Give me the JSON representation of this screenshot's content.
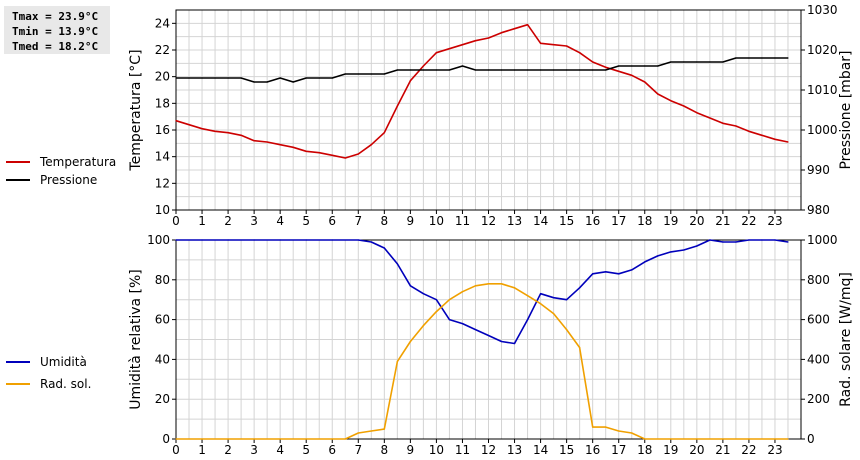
{
  "stats": {
    "tmax": "Tmax = 23.9°C",
    "tmin": "Tmin = 13.9°C",
    "tmed": "Tmed = 18.2°C"
  },
  "chart_data": [
    {
      "type": "line",
      "ylabel": "Temperatura [°C]",
      "y2label": "Pressione [mbar]",
      "ylim": [
        10,
        25
      ],
      "y2lim": [
        980,
        1030
      ],
      "yticks": [
        10,
        12,
        14,
        16,
        18,
        20,
        22,
        24
      ],
      "y2ticks": [
        980,
        990,
        1000,
        1010,
        1020,
        1030
      ],
      "xticks": [
        "0",
        "1",
        "2",
        "3",
        "4",
        "5",
        "6",
        "7",
        "8",
        "9",
        "10",
        "11",
        "12",
        "13",
        "14",
        "15",
        "16",
        "17",
        "18",
        "19",
        "20",
        "21",
        "22",
        "23"
      ],
      "xlim": [
        0,
        24
      ],
      "grid": true,
      "legend_position": "left",
      "series": [
        {
          "name": "Temperatura",
          "axis": "left",
          "color": "#cc0000",
          "x": [
            0,
            0.5,
            1,
            1.5,
            2,
            2.5,
            3,
            3.5,
            4,
            4.5,
            5,
            5.5,
            6,
            6.5,
            7,
            7.5,
            8,
            8.5,
            9,
            9.5,
            10,
            10.5,
            11,
            11.5,
            12,
            12.5,
            13,
            13.5,
            14,
            14.5,
            15,
            15.5,
            16,
            16.5,
            17,
            17.5,
            18,
            18.5,
            19,
            19.5,
            20,
            20.5,
            21,
            21.5,
            22,
            22.5,
            23,
            23.5
          ],
          "values": [
            16.7,
            16.4,
            16.1,
            15.9,
            15.8,
            15.6,
            15.2,
            15.1,
            14.9,
            14.7,
            14.4,
            14.3,
            14.1,
            13.9,
            14.2,
            14.9,
            15.8,
            17.8,
            19.7,
            20.8,
            21.8,
            22.1,
            22.4,
            22.7,
            22.9,
            23.3,
            23.6,
            23.9,
            22.5,
            22.4,
            22.3,
            21.8,
            21.1,
            20.7,
            20.4,
            20.1,
            19.6,
            18.7,
            18.2,
            17.8,
            17.3,
            16.9,
            16.5,
            16.3,
            15.9,
            15.6,
            15.3,
            15.1
          ]
        },
        {
          "name": "Pressione",
          "axis": "right",
          "color": "#000000",
          "x": [
            0,
            0.5,
            1,
            1.5,
            2,
            2.5,
            3,
            3.5,
            4,
            4.5,
            5,
            5.5,
            6,
            6.5,
            7,
            7.5,
            8,
            8.5,
            9,
            9.5,
            10,
            10.5,
            11,
            11.5,
            12,
            12.5,
            13,
            13.5,
            14,
            14.5,
            15,
            15.5,
            16,
            16.5,
            17,
            17.5,
            18,
            18.5,
            19,
            19.5,
            20,
            20.5,
            21,
            21.5,
            22,
            22.5,
            23,
            23.5
          ],
          "values": [
            1013,
            1013,
            1013,
            1013,
            1013,
            1013,
            1012,
            1012,
            1013,
            1012,
            1013,
            1013,
            1013,
            1014,
            1014,
            1014,
            1014,
            1015,
            1015,
            1015,
            1015,
            1015,
            1016,
            1015,
            1015,
            1015,
            1015,
            1015,
            1015,
            1015,
            1015,
            1015,
            1015,
            1015,
            1016,
            1016,
            1016,
            1016,
            1017,
            1017,
            1017,
            1017,
            1017,
            1018,
            1018,
            1018,
            1018,
            1018
          ]
        }
      ]
    },
    {
      "type": "line",
      "ylabel": "Umidità relativa [%]",
      "y2label": "Rad. solare [W/mq]",
      "ylim": [
        0,
        100
      ],
      "y2lim": [
        0,
        1000
      ],
      "yticks": [
        0,
        20,
        40,
        60,
        80,
        100
      ],
      "y2ticks": [
        0,
        200,
        400,
        600,
        800,
        1000
      ],
      "xticks": [
        "0",
        "1",
        "2",
        "3",
        "4",
        "5",
        "6",
        "7",
        "8",
        "9",
        "10",
        "11",
        "12",
        "13",
        "14",
        "15",
        "16",
        "17",
        "18",
        "19",
        "20",
        "21",
        "22",
        "23"
      ],
      "xlim": [
        0,
        24
      ],
      "grid": true,
      "legend_position": "left",
      "series": [
        {
          "name": "Umidità",
          "axis": "left",
          "color": "#0000bb",
          "x": [
            0,
            1,
            2,
            3,
            4,
            5,
            6,
            7,
            7.5,
            8,
            8.5,
            9,
            9.5,
            10,
            10.5,
            11,
            11.5,
            12,
            12.5,
            13,
            13.5,
            14,
            14.5,
            15,
            15.5,
            16,
            16.5,
            17,
            17.5,
            18,
            18.5,
            19,
            19.5,
            20,
            20.5,
            21,
            21.5,
            22,
            22.5,
            23,
            23.5
          ],
          "values": [
            100,
            100,
            100,
            100,
            100,
            100,
            100,
            100,
            99,
            96,
            88,
            77,
            73,
            70,
            60,
            58,
            55,
            52,
            49,
            48,
            60,
            73,
            71,
            70,
            76,
            83,
            84,
            83,
            85,
            89,
            92,
            94,
            95,
            97,
            100,
            99,
            99,
            100,
            100,
            100,
            99
          ]
        },
        {
          "name": "Rad. sol.",
          "axis": "right",
          "color": "#f0a000",
          "x": [
            0,
            1,
            2,
            3,
            4,
            5,
            6,
            6.5,
            7,
            7.5,
            8,
            8.5,
            9,
            9.5,
            10,
            10.5,
            11,
            11.5,
            12,
            12.5,
            13,
            13.5,
            14,
            14.5,
            15,
            15.5,
            16,
            16.5,
            17,
            17.5,
            18,
            19,
            20,
            21,
            22,
            23,
            23.5
          ],
          "values": [
            0,
            0,
            0,
            0,
            0,
            0,
            0,
            0,
            30,
            40,
            50,
            390,
            490,
            570,
            640,
            700,
            740,
            770,
            780,
            780,
            760,
            720,
            680,
            630,
            550,
            460,
            60,
            60,
            40,
            30,
            0,
            0,
            0,
            0,
            0,
            0,
            0
          ]
        }
      ]
    }
  ]
}
